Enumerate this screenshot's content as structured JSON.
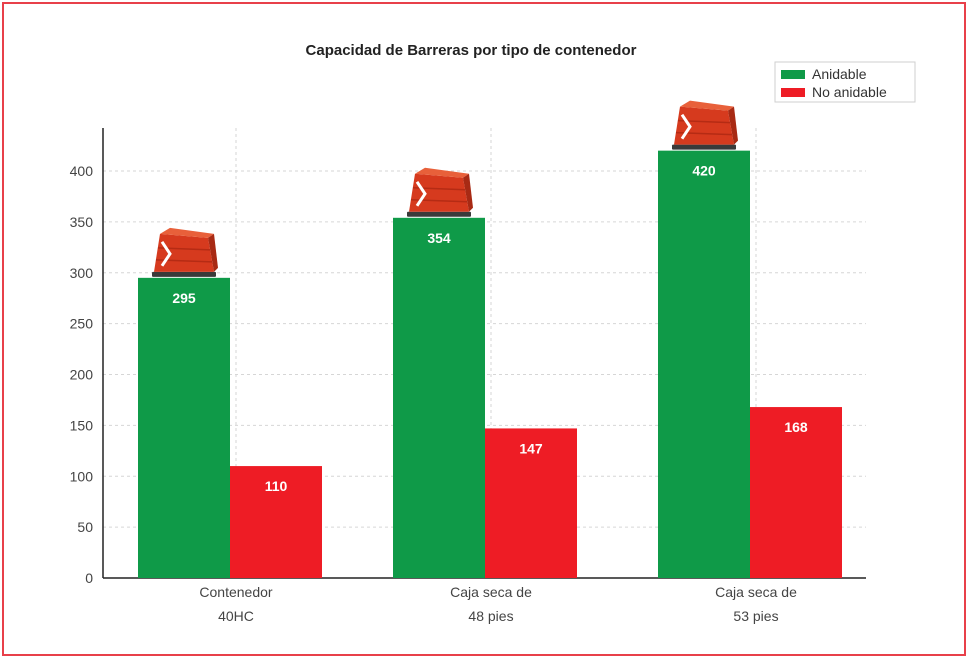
{
  "chart_data": {
    "type": "bar",
    "title": "Capacidad de Barreras por tipo de contenedor",
    "categories": [
      [
        "Contenedor",
        "40HC"
      ],
      [
        "Caja seca de",
        "48 pies"
      ],
      [
        "Caja seca de",
        "53 pies"
      ]
    ],
    "series": [
      {
        "name": "Anidable",
        "values": [
          295,
          354,
          420
        ],
        "color": "#0f9a48"
      },
      {
        "name": "No anidable",
        "values": [
          110,
          147,
          168
        ],
        "color": "#ee1c25"
      }
    ],
    "ylim": [
      0,
      440
    ],
    "yticks": [
      0,
      50,
      100,
      150,
      200,
      250,
      300,
      350,
      400
    ],
    "grid": true,
    "legend": "top-right",
    "frame_color": "#e8404a",
    "icon": "barrier-icon"
  }
}
